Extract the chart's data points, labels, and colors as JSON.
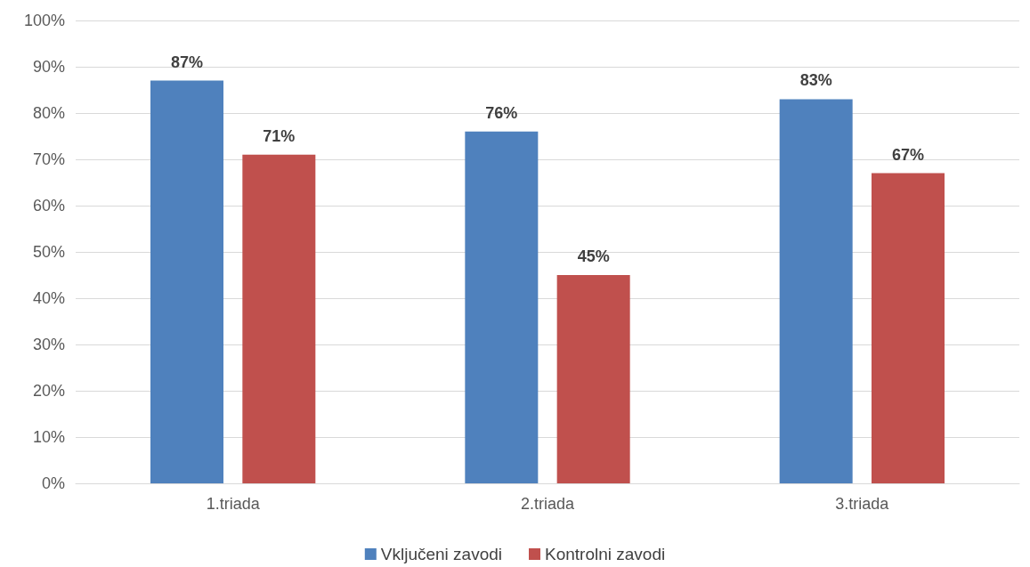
{
  "chart_data": {
    "type": "bar",
    "categories": [
      "1.triada",
      "2.triada",
      "3.triada"
    ],
    "series": [
      {
        "name": "Vključeni zavodi",
        "color": "#4f81bd",
        "values": [
          87,
          76,
          83
        ],
        "value_labels": [
          "87%",
          "76%",
          "83%"
        ]
      },
      {
        "name": "Kontrolni zavodi",
        "color": "#c0504d",
        "values": [
          71,
          45,
          67
        ],
        "value_labels": [
          "71%",
          "45%",
          "67%"
        ]
      }
    ],
    "ylim": [
      0,
      100
    ],
    "yticks": [
      {
        "value": 0,
        "label": "0%"
      },
      {
        "value": 10,
        "label": "10%"
      },
      {
        "value": 20,
        "label": "20%"
      },
      {
        "value": 30,
        "label": "30%"
      },
      {
        "value": 40,
        "label": "40%"
      },
      {
        "value": 50,
        "label": "50%"
      },
      {
        "value": 60,
        "label": "60%"
      },
      {
        "value": 70,
        "label": "70%"
      },
      {
        "value": 80,
        "label": "80%"
      },
      {
        "value": 90,
        "label": "90%"
      },
      {
        "value": 100,
        "label": "100%"
      }
    ],
    "grid": "y",
    "legend": "bottom"
  }
}
